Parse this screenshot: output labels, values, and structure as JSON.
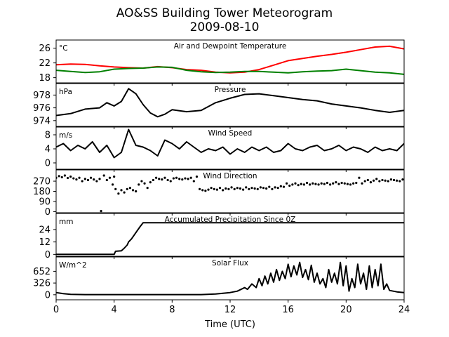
{
  "chart_data": {
    "type": "line",
    "title": "AO&SS Building Tower Meteorogram",
    "subtitle": "2009-08-10",
    "xlabel": "Time (UTC)",
    "xlim": [
      0,
      24
    ],
    "xticks": [
      0,
      4,
      8,
      12,
      16,
      20,
      24
    ],
    "panels": [
      {
        "title": "Air and Dewpoint Temperature",
        "unit": "°C",
        "ylim": [
          16.6,
          28.2
        ],
        "yticks": [
          "18",
          "22",
          "26"
        ],
        "yticks_values": [
          18,
          22,
          26
        ],
        "style": "line",
        "series": [
          {
            "color": "#ff0000",
            "x": [
              0,
              1,
              2,
              3,
              4,
              5,
              6,
              7,
              8,
              9,
              10,
              11,
              12,
              13,
              14,
              15,
              16,
              17,
              18,
              19,
              20,
              21,
              22,
              23,
              24
            ],
            "values": [
              21.5,
              21.7,
              21.6,
              21.2,
              20.9,
              20.7,
              20.6,
              21.0,
              20.7,
              20.2,
              20.0,
              19.5,
              19.3,
              19.5,
              20.2,
              21.4,
              22.6,
              23.2,
              23.8,
              24.3,
              24.9,
              25.6,
              26.3,
              26.5,
              25.8
            ]
          },
          {
            "color": "#008000",
            "x": [
              0,
              1,
              2,
              3,
              4,
              5,
              6,
              7,
              8,
              9,
              10,
              11,
              12,
              13,
              14,
              15,
              16,
              17,
              18,
              19,
              20,
              21,
              22,
              23,
              24
            ],
            "values": [
              20.0,
              19.7,
              19.4,
              19.6,
              20.3,
              20.5,
              20.6,
              20.9,
              20.8,
              20.0,
              19.6,
              19.4,
              19.5,
              19.7,
              19.7,
              19.5,
              19.3,
              19.6,
              19.8,
              19.9,
              20.3,
              19.9,
              19.5,
              19.3,
              18.9
            ]
          }
        ]
      },
      {
        "title": "Pressure",
        "unit": "hPa",
        "ylim": [
          973.1,
          979.8
        ],
        "yticks": [
          "974",
          "976",
          "978"
        ],
        "yticks_values": [
          974,
          976,
          978
        ],
        "style": "line",
        "series": [
          {
            "color": "#000000",
            "x": [
              0,
              1,
              2,
              3,
              3.5,
              4,
              4.5,
              5,
              5.5,
              6,
              6.5,
              7,
              7.5,
              8,
              9,
              10,
              11,
              12,
              13,
              14,
              15,
              16,
              17,
              18,
              19,
              20,
              21,
              22,
              23,
              24
            ],
            "values": [
              974.8,
              975.1,
              975.8,
              976.0,
              976.8,
              976.3,
              977.0,
              979.0,
              978.2,
              976.5,
              975.2,
              974.6,
              975.0,
              975.7,
              975.4,
              975.6,
              976.8,
              977.5,
              978.1,
              978.2,
              977.9,
              977.6,
              977.3,
              977.1,
              976.6,
              976.3,
              976.0,
              975.6,
              975.3,
              975.6
            ]
          }
        ]
      },
      {
        "title": "Wind Speed",
        "unit": "m/s",
        "ylim": [
          -1.8,
          10.2
        ],
        "yticks": [
          "0",
          "4",
          "8"
        ],
        "yticks_values": [
          0,
          4,
          8
        ],
        "style": "line",
        "series": [
          {
            "color": "#000000",
            "x": [
              0,
              0.5,
              1,
              1.5,
              2,
              2.5,
              3,
              3.5,
              4,
              4.5,
              5,
              5.5,
              6,
              6.5,
              7,
              7.5,
              8,
              8.5,
              9,
              9.5,
              10,
              10.5,
              11,
              11.5,
              12,
              12.5,
              13,
              13.5,
              14,
              14.5,
              15,
              15.5,
              16,
              16.5,
              17,
              17.5,
              18,
              18.5,
              19,
              19.5,
              20,
              20.5,
              21,
              21.5,
              22,
              22.5,
              23,
              23.5,
              24
            ],
            "values": [
              4.5,
              5.5,
              3.5,
              5.0,
              4.0,
              6.0,
              3.0,
              5.0,
              1.5,
              3.0,
              9.5,
              5.0,
              4.5,
              3.5,
              2.0,
              6.5,
              5.5,
              4.0,
              6.0,
              4.5,
              3.0,
              4.0,
              3.5,
              4.5,
              2.5,
              4.0,
              3.0,
              4.5,
              3.5,
              4.5,
              3.0,
              3.5,
              5.5,
              4.0,
              3.5,
              4.5,
              5.0,
              3.5,
              4.0,
              5.0,
              3.5,
              4.5,
              4.0,
              3.0,
              4.5,
              3.5,
              4.0,
              3.5,
              5.5
            ]
          }
        ]
      },
      {
        "title": "Wind Direction",
        "unit": "",
        "ylim": [
          -10,
          370
        ],
        "yticks": [
          "0",
          "90",
          "180",
          "270"
        ],
        "yticks_values": [
          0,
          90,
          180,
          270
        ],
        "style": "dots",
        "series": [
          {
            "color": "#000000",
            "x": [
              0.0,
              0.2,
              0.4,
              0.6,
              0.8,
              1.0,
              1.2,
              1.4,
              1.6,
              1.8,
              2.0,
              2.2,
              2.4,
              2.6,
              2.8,
              3.0,
              3.1,
              3.3,
              3.5,
              3.7,
              3.9,
              4.0,
              4.1,
              4.3,
              4.5,
              4.7,
              4.9,
              5.1,
              5.3,
              5.5,
              5.7,
              5.9,
              6.1,
              6.3,
              6.5,
              6.7,
              6.9,
              7.1,
              7.3,
              7.5,
              7.7,
              7.9,
              8.1,
              8.3,
              8.5,
              8.7,
              8.9,
              9.1,
              9.3,
              9.5,
              9.7,
              9.9,
              10.1,
              10.3,
              10.5,
              10.7,
              10.9,
              11.1,
              11.3,
              11.5,
              11.7,
              11.9,
              12.1,
              12.3,
              12.5,
              12.7,
              12.9,
              13.1,
              13.3,
              13.5,
              13.7,
              13.9,
              14.1,
              14.3,
              14.5,
              14.7,
              14.9,
              15.1,
              15.3,
              15.5,
              15.7,
              15.9,
              16.1,
              16.3,
              16.5,
              16.7,
              16.9,
              17.1,
              17.3,
              17.5,
              17.7,
              17.9,
              18.1,
              18.3,
              18.5,
              18.7,
              18.9,
              19.1,
              19.3,
              19.5,
              19.7,
              19.9,
              20.1,
              20.3,
              20.5,
              20.7,
              20.9,
              21.1,
              21.3,
              21.5,
              21.7,
              21.9,
              22.1,
              22.3,
              22.5,
              22.7,
              22.9,
              23.1,
              23.3,
              23.5,
              23.7,
              23.9
            ],
            "values": [
              300,
              315,
              305,
              320,
              298,
              310,
              295,
              285,
              300,
              270,
              290,
              280,
              300,
              285,
              270,
              290,
              5,
              320,
              280,
              300,
              240,
              310,
              200,
              160,
              190,
              170,
              200,
              210,
              190,
              180,
              240,
              270,
              250,
              210,
              260,
              280,
              300,
              290,
              285,
              300,
              280,
              270,
              295,
              300,
              290,
              285,
              295,
              290,
              300,
              270,
              310,
              200,
              190,
              185,
              195,
              210,
              200,
              195,
              210,
              190,
              205,
              200,
              215,
              200,
              210,
              205,
              195,
              215,
              200,
              210,
              205,
              200,
              215,
              210,
              205,
              220,
              200,
              215,
              210,
              225,
              220,
              250,
              230,
              240,
              250,
              235,
              245,
              240,
              255,
              240,
              250,
              245,
              240,
              250,
              245,
              255,
              240,
              250,
              260,
              245,
              255,
              250,
              245,
              240,
              250,
              255,
              300,
              250,
              270,
              280,
              260,
              275,
              290,
              270,
              280,
              275,
              270,
              285,
              280,
              275,
              270,
              285
            ]
          }
        ]
      },
      {
        "title": "Accumulated Precipitation Since 0Z",
        "unit": "mm",
        "ylim": [
          -1.8,
          39.5
        ],
        "yticks": [
          "0",
          "12",
          "24"
        ],
        "yticks_values": [
          0,
          12,
          24
        ],
        "style": "line",
        "series": [
          {
            "color": "#000000",
            "x": [
              0,
              4.0,
              4.1,
              4.5,
              4.7,
              4.9,
              5.0,
              5.2,
              5.4,
              5.6,
              5.8,
              6.0,
              24
            ],
            "values": [
              0,
              0,
              3,
              3.5,
              6,
              9,
              12,
              15,
              19,
              23,
              27,
              30.5,
              30.5
            ]
          }
        ]
      },
      {
        "title": "Solar Flux",
        "unit": "W/m^2",
        "ylim": [
          -140,
          1050
        ],
        "yticks": [
          "0",
          "326",
          "652"
        ],
        "yticks_values": [
          0,
          326,
          652
        ],
        "style": "line",
        "series": [
          {
            "color": "#000000",
            "x": [
              0,
              0.5,
              1,
              2,
              3,
              4,
              5,
              6,
              7,
              8,
              9,
              10,
              11,
              11.5,
              12,
              12.5,
              13,
              13.2,
              13.5,
              13.8,
              14,
              14.2,
              14.4,
              14.6,
              14.8,
              15,
              15.2,
              15.4,
              15.6,
              15.8,
              16,
              16.2,
              16.4,
              16.6,
              16.8,
              17,
              17.2,
              17.4,
              17.6,
              17.8,
              18,
              18.2,
              18.4,
              18.6,
              18.8,
              19,
              19.2,
              19.4,
              19.6,
              19.8,
              20,
              20.2,
              20.4,
              20.6,
              20.8,
              21,
              21.2,
              21.4,
              21.6,
              21.8,
              22,
              22.2,
              22.4,
              22.6,
              22.8,
              23,
              23.5,
              24
            ],
            "values": [
              60,
              30,
              10,
              5,
              5,
              5,
              5,
              5,
              5,
              5,
              5,
              5,
              20,
              40,
              60,
              100,
              200,
              150,
              300,
              200,
              450,
              250,
              520,
              300,
              600,
              350,
              700,
              400,
              650,
              450,
              850,
              500,
              800,
              550,
              900,
              480,
              700,
              420,
              820,
              350,
              600,
              300,
              450,
              200,
              700,
              350,
              600,
              300,
              900,
              250,
              800,
              100,
              450,
              200,
              850,
              300,
              600,
              150,
              800,
              200,
              700,
              250,
              850,
              150,
              300,
              120,
              80,
              60
            ]
          }
        ]
      }
    ]
  }
}
